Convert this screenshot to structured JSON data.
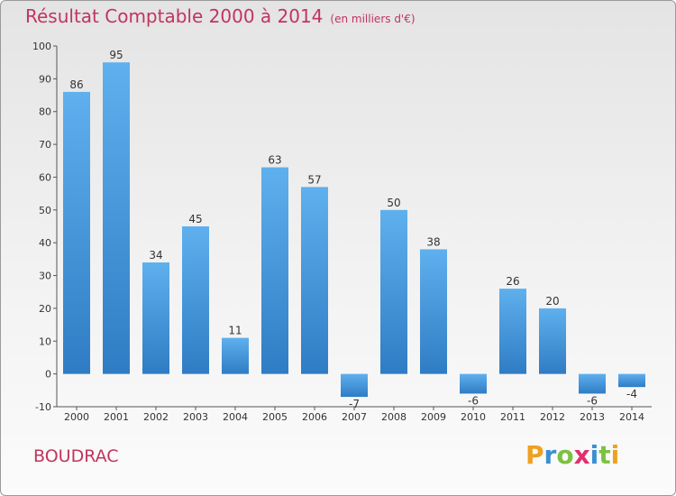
{
  "chart_data": {
    "type": "bar",
    "title": "Résultat Comptable 2000 à 2014",
    "subtitle": "(en milliers d'€)",
    "categories": [
      "2000",
      "2001",
      "2002",
      "2003",
      "2004",
      "2005",
      "2006",
      "2007",
      "2008",
      "2009",
      "2010",
      "2011",
      "2012",
      "2013",
      "2014"
    ],
    "values": [
      86,
      95,
      34,
      45,
      11,
      63,
      57,
      -7,
      50,
      38,
      -6,
      26,
      20,
      -6,
      -4
    ],
    "y_ticks": [
      -10,
      0,
      10,
      20,
      30,
      40,
      50,
      60,
      70,
      80,
      90,
      100
    ],
    "ylim": [
      -10,
      100
    ],
    "grid": false,
    "bar_color": "#3d8ed6",
    "bar_color_light": "#5fb0ee"
  },
  "footer": {
    "city": "BOUDRAC",
    "logo_letters": [
      "P",
      "r",
      "o",
      "x",
      "i",
      "t",
      "i"
    ],
    "logo_colors": [
      "#f0a020",
      "#3b8fd0",
      "#7cc242",
      "#e0306f",
      "#3b8fd0",
      "#7cc242",
      "#f0a020"
    ]
  },
  "colors": {
    "title": "#c0355f",
    "axis": "#555555"
  }
}
